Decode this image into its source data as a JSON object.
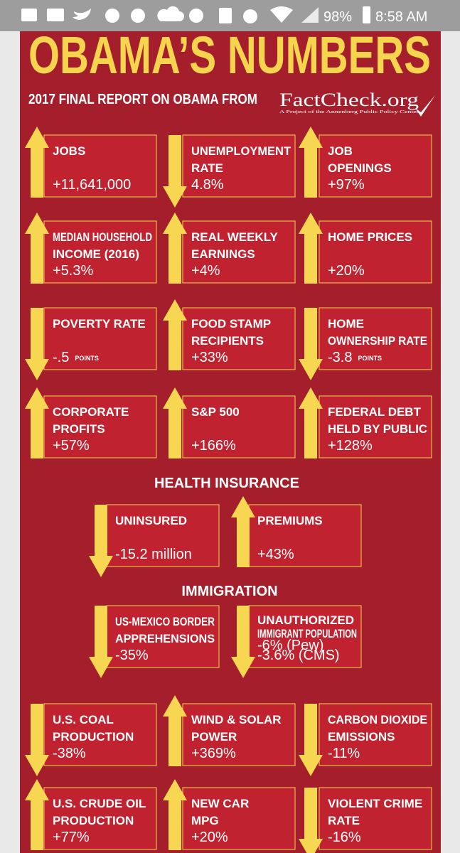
{
  "status": {
    "battery": "98%",
    "time": "8:58 AM"
  },
  "header": {
    "title": "OBAMA’S NUMBERS",
    "subtitle": "2017 FINAL REPORT ON OBAMA FROM",
    "logo": "FactCheck.org",
    "logo_tagline": "A Project of the Annenberg Public Policy Center"
  },
  "sections": [
    "HEALTH INSURANCE",
    "IMMIGRATION"
  ],
  "tiles": [
    {
      "label": [
        "JOBS"
      ],
      "value": [
        "+11,641,000"
      ]
    },
    {
      "label": [
        "UNEMPLOYMENT",
        "RATE"
      ],
      "value": [
        "4.8%"
      ]
    },
    {
      "label": [
        "JOB",
        "OPENINGS"
      ],
      "value": [
        "+97%"
      ]
    },
    {
      "label": [
        "MEDIAN HOUSEHOLD",
        "INCOME (2016)"
      ],
      "value": [
        "+5.3%"
      ]
    },
    {
      "label": [
        "REAL WEEKLY",
        "EARNINGS"
      ],
      "value": [
        "+4%"
      ]
    },
    {
      "label": [
        "HOME PRICES"
      ],
      "value": [
        "+20%"
      ]
    },
    {
      "label": [
        "POVERTY RATE"
      ],
      "value": [
        "-.5"
      ],
      "unit": "POINTS"
    },
    {
      "label": [
        "FOOD STAMP",
        "RECIPIENTS"
      ],
      "value": [
        "+33%"
      ]
    },
    {
      "label": [
        "HOME",
        "OWNERSHIP RATE"
      ],
      "value": [
        "-3.8"
      ],
      "unit": "POINTS"
    },
    {
      "label": [
        "CORPORATE",
        "PROFITS"
      ],
      "value": [
        "+57%"
      ]
    },
    {
      "label": [
        "S&P 500"
      ],
      "value": [
        "+166%"
      ]
    },
    {
      "label": [
        "FEDERAL DEBT",
        "HELD BY PUBLIC"
      ],
      "value": [
        "+128%"
      ]
    },
    {
      "label": [
        "UNINSURED"
      ],
      "value": [
        "-15.2 million"
      ]
    },
    {
      "label": [
        "PREMIUMS"
      ],
      "value": [
        "+43%"
      ]
    },
    {
      "label": [
        "US-MEXICO BORDER",
        "APPREHENSIONS"
      ],
      "value": [
        "-35%"
      ]
    },
    {
      "label": [
        "UNAUTHORIZED",
        "IMMIGRANT POPULATION"
      ],
      "value": [
        "-6% (Pew)",
        "-3.6% (CMS)"
      ]
    },
    {
      "label": [
        "U.S. COAL",
        "PRODUCTION"
      ],
      "value": [
        "-38%"
      ]
    },
    {
      "label": [
        "WIND & SOLAR",
        "POWER"
      ],
      "value": [
        "+369%"
      ]
    },
    {
      "label": [
        "CARBON DIOXIDE",
        "EMISSIONS"
      ],
      "value": [
        "-11%"
      ]
    },
    {
      "label": [
        "U.S. CRUDE OIL",
        "PRODUCTION"
      ],
      "value": [
        "+77%"
      ]
    },
    {
      "label": [
        "NEW CAR",
        "MPG"
      ],
      "value": [
        "+20%"
      ]
    },
    {
      "label": [
        "VIOLENT CRIME",
        "RATE"
      ],
      "value": [
        "-16%"
      ]
    }
  ]
}
